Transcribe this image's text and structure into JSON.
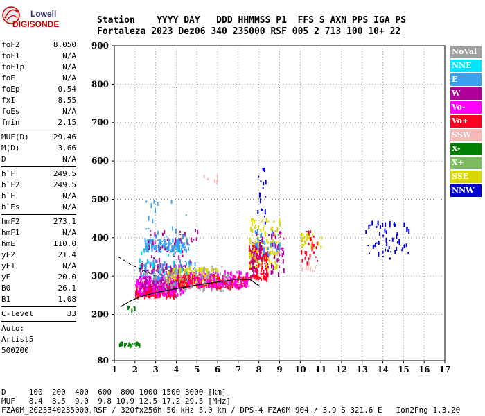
{
  "logo": {
    "line1": "Lowell",
    "line2": "DIGISONDE"
  },
  "header": {
    "row1": "Station    YYYY DAY   DDD HHMMSS P1  FFS S AXN PPS IGA PS",
    "row2": "Fortaleza 2023 Dez06 340 235000 RSF 005 2 713 100 10+ 22"
  },
  "parameters": [
    {
      "group": [
        {
          "label": "foF2",
          "value": "8.050"
        },
        {
          "label": "foF1",
          "value": "N/A"
        },
        {
          "label": "foF1p",
          "value": "N/A"
        },
        {
          "label": "foE",
          "value": "N/A"
        },
        {
          "label": "foEp",
          "value": "0.54"
        },
        {
          "label": "fxI",
          "value": "8.55"
        },
        {
          "label": "foEs",
          "value": "N/A"
        },
        {
          "label": "fmin",
          "value": "2.15"
        }
      ]
    },
    {
      "group": [
        {
          "label": "MUF(D)",
          "value": "29.46"
        },
        {
          "label": "M(D)",
          "value": "3.66"
        },
        {
          "label": "D",
          "value": "N/A"
        }
      ]
    },
    {
      "group": [
        {
          "label": "h`F",
          "value": "249.5"
        },
        {
          "label": "h`F2",
          "value": "249.5"
        },
        {
          "label": "h`E",
          "value": "N/A"
        },
        {
          "label": "h`Es",
          "value": "N/A"
        }
      ]
    },
    {
      "group": [
        {
          "label": "hmF2",
          "value": "273.1"
        },
        {
          "label": "hmF1",
          "value": "N/A"
        },
        {
          "label": "hmE",
          "value": "110.0"
        },
        {
          "label": "yF2",
          "value": "21.4"
        },
        {
          "label": "yF1",
          "value": "N/A"
        },
        {
          "label": "yE",
          "value": "20.0"
        },
        {
          "label": "B0",
          "value": "26.1"
        },
        {
          "label": "B1",
          "value": "1.08"
        }
      ]
    },
    {
      "group": [
        {
          "label": "C-level",
          "value": "33"
        }
      ]
    }
  ],
  "autoscaling": [
    "Auto:",
    "Artist5",
    "500200"
  ],
  "legend": [
    {
      "label": "NoVal",
      "color": "#a0a0a0"
    },
    {
      "label": "NNE",
      "color": "#00e5ff"
    },
    {
      "label": "E",
      "color": "#3aa0f0"
    },
    {
      "label": "W",
      "color": "#b0009a"
    },
    {
      "label": "Vo-",
      "color": "#ff00ff"
    },
    {
      "label": "Vo+",
      "color": "#ff0020"
    },
    {
      "label": "SSW",
      "color": "#f8b8b8"
    },
    {
      "label": "X-",
      "color": "#008000"
    },
    {
      "label": "X+",
      "color": "#7dbb60"
    },
    {
      "label": "SSE",
      "color": "#d8d800"
    },
    {
      "label": "NNW",
      "color": "#0000d0"
    }
  ],
  "footer": {
    "row1": "D     100  200  400  600  800 1000 1500 3000 [km]",
    "row2": "MUF   8.4  8.5  9.0  9.8 10.9 12.5 17.2 29.5 [MHz]",
    "row3": "FZA0M_2023340235000.RSF / 320fx256h 50 kHz 5.0 km / DPS-4 FZA0M 904 / 3.9 S 321.6 E   Ion2Png 1.3.20"
  },
  "chart_data": {
    "type": "scatter",
    "xlim": [
      1,
      17
    ],
    "ylim": [
      80,
      900
    ],
    "xticks": [
      1,
      2,
      3,
      4,
      5,
      6,
      7,
      8,
      9,
      10,
      11,
      12,
      13,
      14,
      15,
      16,
      17
    ],
    "yticks": [
      80,
      200,
      300,
      400,
      500,
      600,
      700,
      800,
      900
    ],
    "grid": true,
    "legend_placement": "right",
    "clusters": [
      {
        "series": "Vo+",
        "x": [
          2.0,
          4.0
        ],
        "y": [
          245,
          285
        ],
        "n": 260
      },
      {
        "series": "Vo-",
        "x": [
          2.0,
          4.3
        ],
        "y": [
          250,
          300
        ],
        "n": 200
      },
      {
        "series": "W",
        "x": [
          2.2,
          4.5
        ],
        "y": [
          265,
          330
        ],
        "n": 170
      },
      {
        "series": "E",
        "x": [
          2.4,
          4.6
        ],
        "y": [
          365,
          395
        ],
        "n": 140
      },
      {
        "series": "E",
        "x": [
          2.2,
          5.0
        ],
        "y": [
          280,
          340
        ],
        "n": 80
      },
      {
        "series": "SSE",
        "x": [
          3.5,
          6.0
        ],
        "y": [
          275,
          320
        ],
        "n": 150
      },
      {
        "series": "Vo+",
        "x": [
          4.0,
          7.4
        ],
        "y": [
          268,
          300
        ],
        "n": 200
      },
      {
        "series": "Vo-",
        "x": [
          4.5,
          7.5
        ],
        "y": [
          270,
          310
        ],
        "n": 120
      },
      {
        "series": "NoVal",
        "x": [
          2.5,
          6.5
        ],
        "y": [
          260,
          330
        ],
        "n": 70
      },
      {
        "series": "W",
        "x": [
          2.6,
          5.0
        ],
        "y": [
          330,
          420
        ],
        "n": 45
      },
      {
        "series": "NNE",
        "x": [
          2.2,
          4.5
        ],
        "y": [
          300,
          380
        ],
        "n": 25
      },
      {
        "series": "Vo+",
        "x": [
          7.5,
          8.4
        ],
        "y": [
          290,
          380
        ],
        "n": 130
      },
      {
        "series": "SSE",
        "x": [
          7.5,
          9.0
        ],
        "y": [
          320,
          450
        ],
        "n": 110
      },
      {
        "series": "W",
        "x": [
          7.6,
          9.2
        ],
        "y": [
          300,
          420
        ],
        "n": 80
      },
      {
        "series": "NNW",
        "x": [
          7.9,
          8.3
        ],
        "y": [
          430,
          580
        ],
        "n": 18
      },
      {
        "series": "E",
        "x": [
          7.8,
          9.0
        ],
        "y": [
          350,
          420
        ],
        "n": 30
      },
      {
        "series": "SSE",
        "x": [
          10.0,
          11.0
        ],
        "y": [
          375,
          410
        ],
        "n": 30
      },
      {
        "series": "Vo+",
        "x": [
          10.0,
          10.8
        ],
        "y": [
          330,
          420
        ],
        "n": 25
      },
      {
        "series": "SSW",
        "x": [
          10.0,
          10.8
        ],
        "y": [
          310,
          350
        ],
        "n": 15
      },
      {
        "series": "NNW",
        "x": [
          13.1,
          15.3
        ],
        "y": [
          340,
          440
        ],
        "n": 55
      },
      {
        "series": "X-",
        "x": [
          1.2,
          2.2
        ],
        "y": [
          118,
          126
        ],
        "n": 28
      },
      {
        "series": "X-",
        "x": [
          1.6,
          2.0
        ],
        "y": [
          210,
          220
        ],
        "n": 6
      },
      {
        "series": "E",
        "x": [
          2.5,
          4.5
        ],
        "y": [
          400,
          500
        ],
        "n": 20
      },
      {
        "series": "SSW",
        "x": [
          5.2,
          6.0
        ],
        "y": [
          545,
          560
        ],
        "n": 6
      }
    ],
    "profile_curve": {
      "x": [
        1.3,
        1.8,
        2.3,
        3.0,
        3.8,
        4.6,
        5.4,
        6.2,
        7.0,
        7.6,
        8.05
      ],
      "y": [
        220,
        236,
        247,
        257,
        265,
        273,
        280,
        286,
        292,
        290,
        273
      ]
    },
    "trace_line_upper": {
      "x": [
        1.2,
        1.8,
        2.4,
        3.0
      ],
      "y": [
        350,
        330,
        315,
        300
      ]
    }
  }
}
